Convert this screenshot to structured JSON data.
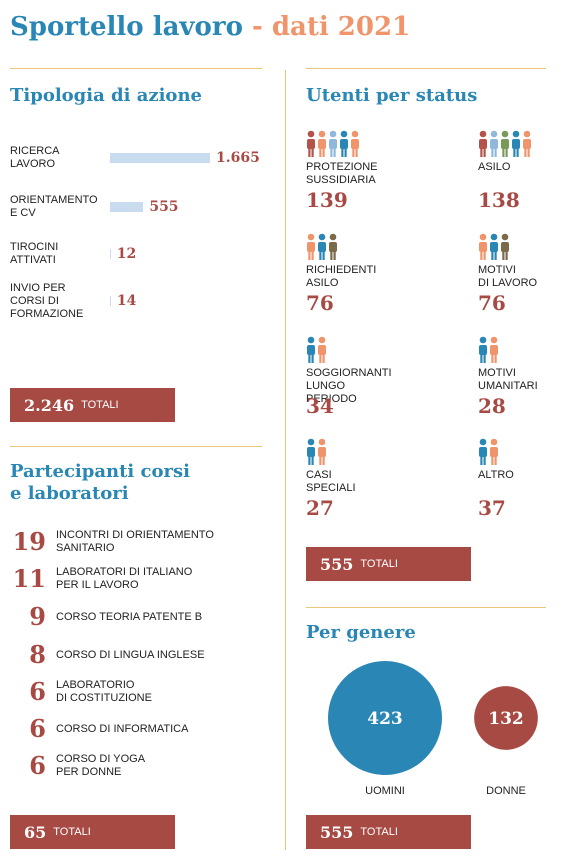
{
  "header": {
    "title": "Sportello lavoro",
    "separator": "-",
    "subtitle": "dati 2021"
  },
  "actions": {
    "title": "Tipologia di azione",
    "labels": [
      "RICERCA\nLAVORO",
      "ORIENTAMENTO\nE CV",
      "TIROCINI\nATTIVATI",
      "INVIO PER\nCORSI DI\nFORMAZIONE"
    ],
    "values": [
      1665,
      555,
      12,
      14
    ],
    "value_labels": [
      "1.665",
      "555",
      "12",
      "14"
    ],
    "total": {
      "value": "2.246",
      "label": "TOTALI"
    }
  },
  "courses": {
    "title": "Partecipanti corsi\ne laboratori",
    "rows": [
      {
        "count": 19,
        "label": "INCONTRI DI ORIENTAMENTO\nSANITARIO"
      },
      {
        "count": 11,
        "label": "LABORATORI DI ITALIANO\nPER IL LAVORO"
      },
      {
        "count": 9,
        "label": "CORSO TEORIA PATENTE B"
      },
      {
        "count": 8,
        "label": "CORSO DI LINGUA INGLESE"
      },
      {
        "count": 6,
        "label": "LABORATORIO\nDI COSTITUZIONE"
      },
      {
        "count": 6,
        "label": "CORSO DI INFORMATICA"
      },
      {
        "count": 6,
        "label": "CORSO DI YOGA\nPER DONNE"
      }
    ],
    "total": {
      "value": "65",
      "label": "TOTALI"
    }
  },
  "status": {
    "title": "Utenti per status",
    "items": [
      {
        "label": "PROTEZIONE\nSUSSIDIARIA",
        "value": 139
      },
      {
        "label": "ASILO",
        "value": 138
      },
      {
        "label": "RICHIEDENTI\nASILO",
        "value": 76
      },
      {
        "label": "MOTIVI\nDI LAVORO",
        "value": 76
      },
      {
        "label": "SOGGIORNANTI\nLUNGO PERIODO",
        "value": 34
      },
      {
        "label": "MOTIVI\nUMANITARI",
        "value": 28
      },
      {
        "label": "CASI\nSPECIALI",
        "value": 27
      },
      {
        "label": "ALTRO",
        "value": 37
      }
    ],
    "total": {
      "value": "555",
      "label": "TOTALI"
    }
  },
  "gender": {
    "title": "Per genere",
    "labels": [
      "UOMINI",
      "DONNE"
    ],
    "values": [
      423,
      132
    ],
    "total": {
      "value": "555",
      "label": "TOTALI"
    }
  }
}
